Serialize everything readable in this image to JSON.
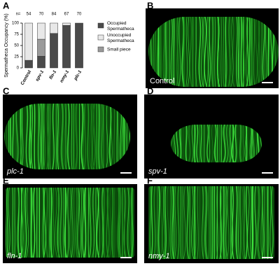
{
  "chart_data": {
    "type": "stacked_bar",
    "y_label": "Spermatheca Occupancy (%)",
    "n_label": "n=",
    "n_values": [
      54,
      70,
      84,
      67,
      70
    ],
    "categories": [
      "Control",
      "spv-1",
      "fln-1",
      "nmy-1",
      "plc-1"
    ],
    "series": [
      {
        "name": "Occupied Spermatheca",
        "color": "#4a4a4a",
        "values": [
          17,
          26,
          77,
          95,
          100
        ]
      },
      {
        "name": "Small piece",
        "color": "#9a9a9a",
        "values": [
          0,
          38,
          0,
          0,
          0
        ]
      },
      {
        "name": "Unoccupied Spermatheca",
        "color": "#e8e8e8",
        "values": [
          83,
          36,
          23,
          5,
          0
        ]
      }
    ],
    "ylim": [
      0,
      100
    ],
    "yticks": [
      0,
      25,
      50,
      75,
      100
    ]
  },
  "panel_labels": [
    "A",
    "B",
    "C",
    "D",
    "E",
    "F"
  ],
  "images": [
    {
      "label": "Control"
    },
    {
      "label": "plc-1"
    },
    {
      "label": "spv-1"
    },
    {
      "label": "fln-1"
    },
    {
      "label": "nmy-1"
    }
  ]
}
